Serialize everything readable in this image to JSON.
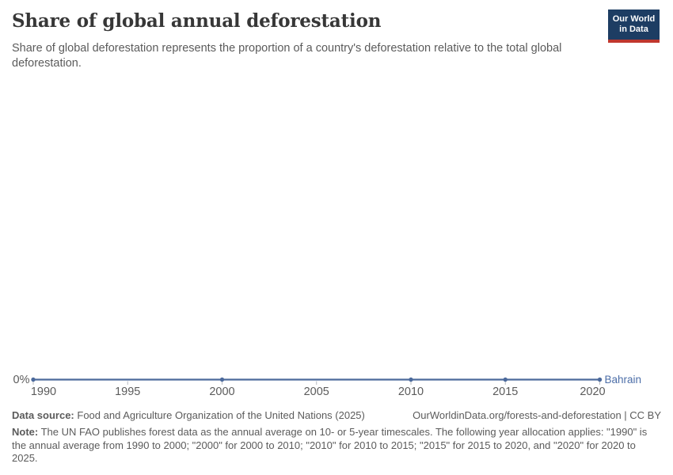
{
  "header": {
    "title": "Share of global annual deforestation",
    "subtitle": "Share of global deforestation represents the proportion of a country's deforestation relative to the total global deforestation."
  },
  "logo": {
    "line1": "Our World",
    "line2": "in Data",
    "bg_color": "#1d3d63",
    "accent_color": "#c0372e"
  },
  "chart": {
    "entity_label": "Bahrain",
    "y_axis_label": "0%",
    "line_color": "#4C6A9C",
    "entity_color": "#4c6ea8",
    "axis_text_color": "#5b5b5b",
    "tick_color": "#b9bcc2"
  },
  "chart_data": {
    "type": "line",
    "title": "Share of global annual deforestation",
    "entity": "Bahrain",
    "unit": "%",
    "x": [
      1990,
      2000,
      2010,
      2015,
      2020
    ],
    "series": [
      {
        "name": "Bahrain",
        "values": [
          0,
          0,
          0,
          0,
          0
        ]
      }
    ],
    "x_tick_labels": [
      "1990",
      "1995",
      "2000",
      "2005",
      "2010",
      "2015",
      "2020"
    ],
    "y_tick_labels": [
      "0%"
    ],
    "xlim": [
      1990,
      2020
    ],
    "ylim": [
      0,
      0
    ],
    "grid": false,
    "legend": "line-end entity label"
  },
  "footer": {
    "datasource_label": "Data source:",
    "datasource_text": "Food and Agriculture Organization of the United Nations (2025)",
    "link_text": "OurWorldinData.org/forests-and-deforestation | CC BY",
    "note_label": "Note:",
    "note_text": "The UN FAO publishes forest data as the annual average on 10- or 5-year timescales. The following year allocation applies: \"1990\" is the annual average from 1990 to 2000; \"2000\" for 2000 to 2010; \"2010\" for 2010 to 2015; \"2015\" for 2015 to 2020, and \"2020\" for 2020 to 2025."
  }
}
